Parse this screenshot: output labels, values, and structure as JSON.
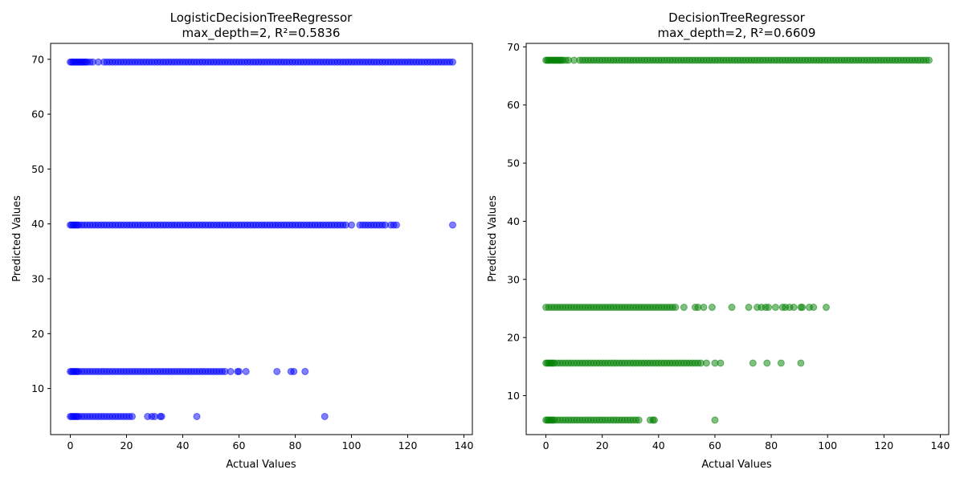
{
  "chart_data": [
    {
      "type": "scatter",
      "title_line1": "LogisticDecisionTreeRegressor",
      "title_line2": "max_depth=2, R²=0.5836",
      "xlabel": "Actual Values",
      "ylabel": "Predicted Values",
      "xlim": [
        -7,
        143
      ],
      "ylim": [
        1.6,
        72.9
      ],
      "xticks": [
        0,
        20,
        40,
        60,
        80,
        100,
        120,
        140
      ],
      "yticks": [
        10,
        20,
        30,
        40,
        50,
        60,
        70
      ],
      "color": "#0000ff",
      "grid": false,
      "series": [
        {
          "y": 69.5,
          "x": [
            0,
            0.5,
            1,
            1.5,
            2,
            2.5,
            3,
            3.5,
            4,
            4.5,
            5,
            5.5,
            6,
            7,
            8,
            10,
            12,
            13,
            14,
            15,
            16,
            17,
            18,
            19,
            20,
            21,
            22,
            23,
            24,
            25,
            26,
            27,
            28,
            29,
            30,
            31,
            32,
            33,
            34,
            35,
            36,
            37,
            38,
            39,
            40,
            41,
            42,
            43,
            44,
            45,
            46,
            47,
            48,
            49,
            50,
            51,
            52,
            53,
            54,
            55,
            56,
            57,
            58,
            59,
            60,
            61,
            62,
            63,
            64,
            65,
            66,
            67,
            68,
            69,
            70,
            71,
            72,
            73,
            74,
            75,
            76,
            77,
            78,
            79,
            80,
            81,
            82,
            83,
            84,
            85,
            86,
            87,
            88,
            89,
            90,
            91,
            92,
            93,
            94,
            95,
            96,
            97,
            98,
            99,
            100,
            101,
            102,
            103,
            104,
            105,
            106,
            107,
            108,
            109,
            110,
            111,
            112,
            113,
            114,
            115,
            116,
            117,
            118,
            119,
            120,
            121,
            122,
            123,
            124,
            125,
            126,
            127,
            128,
            129,
            130,
            131,
            132,
            133,
            134,
            135,
            136
          ]
        },
        {
          "y": 39.8,
          "x": [
            0,
            0.5,
            1,
            1.5,
            2,
            2.5,
            3,
            4,
            5,
            6,
            7,
            8,
            9,
            10,
            11,
            12,
            13,
            14,
            15,
            16,
            17,
            18,
            19,
            20,
            21,
            22,
            23,
            24,
            25,
            26,
            27,
            28,
            29,
            30,
            31,
            32,
            33,
            34,
            35,
            36,
            37,
            38,
            39,
            40,
            41,
            42,
            43,
            44,
            45,
            46,
            47,
            48,
            49,
            50,
            51,
            52,
            53,
            54,
            55,
            56,
            57,
            58,
            59,
            60,
            61,
            62,
            63,
            64,
            65,
            66,
            67,
            68,
            69,
            70,
            71,
            72,
            73,
            74,
            75,
            76,
            77,
            78,
            79,
            80,
            81,
            82,
            83,
            84,
            85,
            86,
            87,
            88,
            89,
            90,
            91,
            92,
            93,
            94,
            95,
            96,
            97,
            98,
            100,
            103,
            104,
            105,
            106,
            107,
            108,
            109,
            110,
            111,
            112,
            114,
            115,
            116,
            136
          ]
        },
        {
          "y": 13.1,
          "x": [
            0,
            0.5,
            1,
            1.5,
            2,
            2.5,
            3,
            4,
            5,
            6,
            7,
            8,
            9,
            10,
            11,
            12,
            13,
            14,
            15,
            16,
            17,
            18,
            19,
            20,
            21,
            22,
            23,
            24,
            25,
            26,
            27,
            28,
            29,
            30,
            31,
            32,
            33,
            34,
            35,
            36,
            37,
            38,
            39,
            40,
            41,
            42,
            43,
            44,
            45,
            46,
            47,
            48,
            49,
            50,
            51,
            52,
            53,
            54,
            55,
            57,
            59.5,
            60,
            62.5,
            73.5,
            78.5,
            79.5,
            83.5
          ]
        },
        {
          "y": 4.9,
          "x": [
            0,
            0.5,
            1,
            1.5,
            2,
            2.5,
            3,
            4,
            5,
            6,
            7,
            8,
            9,
            10,
            11,
            12,
            13,
            14,
            15,
            16,
            17,
            18,
            19,
            20,
            21,
            22,
            27.5,
            29,
            30,
            32,
            32.5,
            45,
            90.5
          ]
        }
      ]
    },
    {
      "type": "scatter",
      "title_line1": "DecisionTreeRegressor",
      "title_line2": "max_depth=2, R²=0.6609",
      "xlabel": "Actual Values",
      "ylabel": "Predicted Values",
      "xlim": [
        -7,
        143
      ],
      "ylim": [
        3.3,
        70.6
      ],
      "xticks": [
        0,
        20,
        40,
        60,
        80,
        100,
        120,
        140
      ],
      "yticks": [
        10,
        20,
        30,
        40,
        50,
        60,
        70
      ],
      "color": "#008000",
      "grid": false,
      "series": [
        {
          "y": 67.7,
          "x": [
            0,
            0.5,
            1,
            1.5,
            2,
            2.5,
            3,
            3.5,
            4,
            4.5,
            5,
            5.5,
            6,
            7,
            8,
            10,
            12,
            13,
            14,
            15,
            16,
            17,
            18,
            19,
            20,
            21,
            22,
            23,
            24,
            25,
            26,
            27,
            28,
            29,
            30,
            31,
            32,
            33,
            34,
            35,
            36,
            37,
            38,
            39,
            40,
            41,
            42,
            43,
            44,
            45,
            46,
            47,
            48,
            49,
            50,
            51,
            52,
            53,
            54,
            55,
            56,
            57,
            58,
            59,
            60,
            61,
            62,
            63,
            64,
            65,
            66,
            67,
            68,
            69,
            70,
            71,
            72,
            73,
            74,
            75,
            76,
            77,
            78,
            79,
            80,
            81,
            82,
            83,
            84,
            85,
            86,
            87,
            88,
            89,
            90,
            91,
            92,
            93,
            94,
            95,
            96,
            97,
            98,
            99,
            100,
            101,
            102,
            103,
            104,
            105,
            106,
            107,
            108,
            109,
            110,
            111,
            112,
            113,
            114,
            115,
            116,
            117,
            118,
            119,
            120,
            121,
            122,
            123,
            124,
            125,
            126,
            127,
            128,
            129,
            130,
            131,
            132,
            133,
            134,
            135,
            136
          ]
        },
        {
          "y": 25.2,
          "x": [
            0,
            1,
            2,
            3,
            4,
            5,
            6,
            7,
            8,
            9,
            10,
            11,
            12,
            13,
            14,
            15,
            16,
            17,
            18,
            19,
            20,
            21,
            22,
            23,
            24,
            25,
            26,
            27,
            28,
            29,
            30,
            31,
            32,
            33,
            34,
            35,
            36,
            37,
            38,
            39,
            40,
            41,
            42,
            43,
            44,
            45,
            46,
            49,
            53,
            54,
            56,
            59,
            66,
            72,
            75,
            76.5,
            78,
            79,
            81.5,
            84,
            85,
            86.5,
            88,
            90.5,
            91,
            93.5,
            95,
            99.5
          ]
        },
        {
          "y": 15.6,
          "x": [
            0,
            0.5,
            1,
            1.5,
            2,
            2.5,
            3,
            4,
            5,
            6,
            7,
            8,
            9,
            10,
            11,
            12,
            13,
            14,
            15,
            16,
            17,
            18,
            19,
            20,
            21,
            22,
            23,
            24,
            25,
            26,
            27,
            28,
            29,
            30,
            31,
            32,
            33,
            34,
            35,
            36,
            37,
            38,
            39,
            40,
            41,
            42,
            43,
            44,
            45,
            46,
            47,
            48,
            49,
            50,
            51,
            52,
            53,
            54,
            55,
            57,
            60,
            62,
            73.5,
            78.5,
            83.5,
            90.5
          ]
        },
        {
          "y": 5.8,
          "x": [
            0,
            0.5,
            1,
            1.5,
            2,
            2.5,
            3,
            4,
            5,
            6,
            7,
            8,
            9,
            10,
            11,
            12,
            13,
            14,
            15,
            16,
            17,
            18,
            19,
            20,
            21,
            22,
            23,
            24,
            25,
            26,
            27,
            28,
            29,
            30,
            31,
            32,
            33,
            37,
            38,
            38.5,
            60
          ]
        }
      ]
    }
  ]
}
